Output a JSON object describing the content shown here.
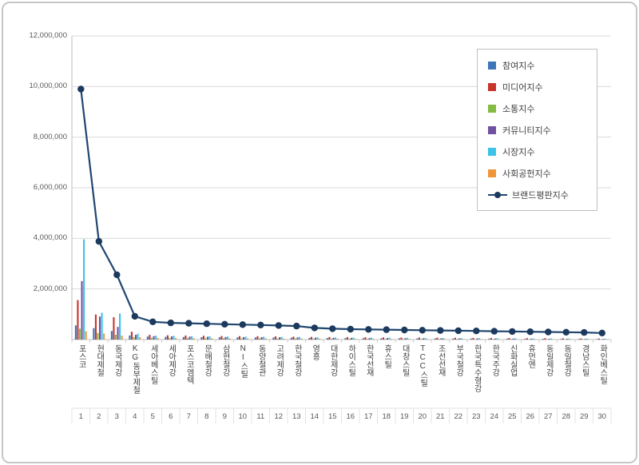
{
  "chart_data": {
    "type": "bar",
    "combo": "grouped-bars-with-line-overlay",
    "title": "",
    "xlabel": "",
    "ylabel": "",
    "ylim": [
      0,
      12000000
    ],
    "ytick_step": 2000000,
    "ytick_labels": [
      "12,000,000",
      "10,000,000",
      "8,000,000",
      "6,000,000",
      "4,000,000",
      "2,000,000"
    ],
    "grid": true,
    "legend_position": "top-right-inside",
    "categories": [
      "포스코",
      "현대제철",
      "동국제강",
      "KG동부제철",
      "세아베스틸",
      "세아제강",
      "포스코엠텍",
      "문배철강",
      "삼현철강",
      "NI스틸",
      "동양철관",
      "고려제강",
      "한국철강",
      "영흥",
      "대한제강",
      "하이스틸",
      "한국선재",
      "휴스틸",
      "대창스틸",
      "TCC스틸",
      "조선선재",
      "부국철강",
      "한국특수형강",
      "한국주강",
      "신화실업",
      "휴먼엔",
      "동일제강",
      "동일철강",
      "경남스틸",
      "화인베스틸"
    ],
    "category_ranks": [
      "1",
      "2",
      "3",
      "4",
      "5",
      "6",
      "7",
      "8",
      "9",
      "10",
      "11",
      "12",
      "13",
      "14",
      "15",
      "16",
      "17",
      "18",
      "19",
      "20",
      "21",
      "22",
      "23",
      "24",
      "25",
      "26",
      "27",
      "28",
      "29",
      "30"
    ],
    "series": [
      {
        "name": "참여지수",
        "type": "bar",
        "color": "#3e74b8",
        "values": [
          560000,
          450000,
          340000,
          160000,
          120000,
          110000,
          100000,
          95000,
          90000,
          85000,
          85000,
          80000,
          75000,
          65000,
          60000,
          55000,
          55000,
          50000,
          50000,
          45000,
          45000,
          40000,
          40000,
          35000,
          35000,
          30000,
          30000,
          25000,
          25000,
          20000
        ]
      },
      {
        "name": "미디어지수",
        "type": "bar",
        "color": "#c8342c",
        "values": [
          1560000,
          990000,
          880000,
          310000,
          185000,
          170000,
          160000,
          150000,
          140000,
          135000,
          130000,
          125000,
          115000,
          105000,
          100000,
          95000,
          90000,
          85000,
          80000,
          80000,
          75000,
          70000,
          65000,
          65000,
          60000,
          55000,
          55000,
          50000,
          45000,
          40000
        ]
      },
      {
        "name": "소통지수",
        "type": "bar",
        "color": "#84bb44",
        "values": [
          430000,
          260000,
          190000,
          100000,
          70000,
          65000,
          60000,
          55000,
          55000,
          50000,
          50000,
          45000,
          45000,
          40000,
          35000,
          35000,
          30000,
          30000,
          30000,
          25000,
          25000,
          25000,
          20000,
          20000,
          20000,
          15000,
          15000,
          15000,
          10000,
          10000
        ]
      },
      {
        "name": "커뮤니티지수",
        "type": "bar",
        "color": "#6f51a1",
        "values": [
          2310000,
          910000,
          500000,
          190000,
          135000,
          125000,
          115000,
          110000,
          100000,
          95000,
          95000,
          90000,
          85000,
          75000,
          70000,
          65000,
          60000,
          60000,
          55000,
          50000,
          50000,
          45000,
          45000,
          40000,
          40000,
          35000,
          30000,
          30000,
          25000,
          25000
        ]
      },
      {
        "name": "시장지수",
        "type": "bar",
        "color": "#3bc3e8",
        "values": [
          3960000,
          1060000,
          1030000,
          230000,
          155000,
          145000,
          135000,
          130000,
          120000,
          115000,
          110000,
          105000,
          100000,
          90000,
          85000,
          80000,
          75000,
          75000,
          70000,
          65000,
          60000,
          60000,
          55000,
          55000,
          50000,
          45000,
          45000,
          40000,
          40000,
          35000
        ]
      },
      {
        "name": "사회공헌지수",
        "type": "bar",
        "color": "#f0953a",
        "values": [
          330000,
          240000,
          155000,
          95000,
          65000,
          60000,
          55000,
          50000,
          50000,
          45000,
          45000,
          40000,
          40000,
          35000,
          35000,
          30000,
          30000,
          25000,
          25000,
          25000,
          20000,
          20000,
          20000,
          20000,
          15000,
          15000,
          15000,
          10000,
          10000,
          10000
        ]
      },
      {
        "name": "브랜드평판지수",
        "type": "line",
        "color": "#1f4670",
        "marker_color": "#1b3a5e",
        "values": [
          9900000,
          3880000,
          2560000,
          920000,
          700000,
          660000,
          645000,
          625000,
          605000,
          590000,
          575000,
          555000,
          535000,
          460000,
          430000,
          410000,
          400000,
          390000,
          380000,
          370000,
          360000,
          350000,
          340000,
          330000,
          320000,
          310000,
          300000,
          290000,
          280000,
          260000
        ]
      }
    ]
  }
}
